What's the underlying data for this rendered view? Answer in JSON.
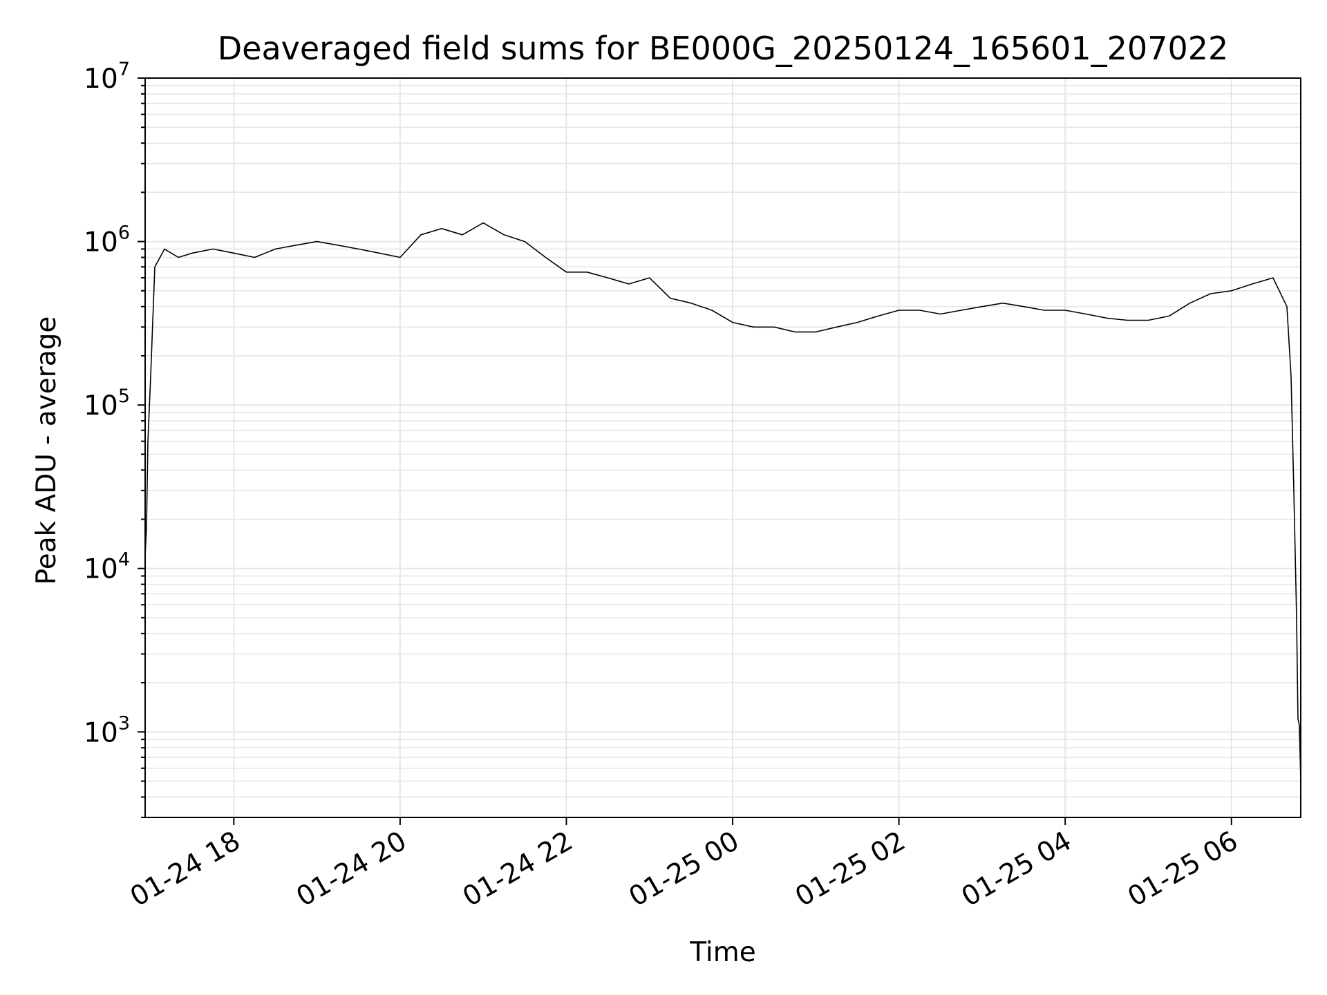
{
  "chart_data": {
    "type": "line",
    "title": "Deaveraged field sums for BE000G_20250124_165601_207022",
    "xlabel": "Time",
    "ylabel": "Peak ADU - average",
    "y_scale": "log",
    "ylim": [
      300,
      10000000
    ],
    "xlim": [
      "2025-01-24 16:56",
      "2025-01-25 06:50"
    ],
    "grid": true,
    "grid_minor": true,
    "line_color": "#000000",
    "grid_color": "#e6e6e6",
    "x_ticks": [
      {
        "t": "2025-01-24 18:00",
        "label": "01-24 18"
      },
      {
        "t": "2025-01-24 20:00",
        "label": "01-24 20"
      },
      {
        "t": "2025-01-24 22:00",
        "label": "01-24 22"
      },
      {
        "t": "2025-01-25 00:00",
        "label": "01-25 00"
      },
      {
        "t": "2025-01-25 02:00",
        "label": "01-25 02"
      },
      {
        "t": "2025-01-25 04:00",
        "label": "01-25 04"
      },
      {
        "t": "2025-01-25 06:00",
        "label": "01-25 06"
      }
    ],
    "y_ticks": [
      {
        "value": 1000,
        "base": "10",
        "exp": "3"
      },
      {
        "value": 10000,
        "base": "10",
        "exp": "4"
      },
      {
        "value": 100000,
        "base": "10",
        "exp": "5"
      },
      {
        "value": 1000000,
        "base": "10",
        "exp": "6"
      },
      {
        "value": 10000000,
        "base": "10",
        "exp": "7"
      }
    ],
    "series": [
      {
        "x": [
          "2025-01-24 16:56",
          "2025-01-24 16:57",
          "2025-01-24 16:58",
          "2025-01-24 17:00",
          "2025-01-24 17:03",
          "2025-01-24 17:10",
          "2025-01-24 17:20",
          "2025-01-24 17:30",
          "2025-01-24 17:45",
          "2025-01-24 18:00",
          "2025-01-24 18:15",
          "2025-01-24 18:30",
          "2025-01-24 18:45",
          "2025-01-24 19:00",
          "2025-01-24 19:15",
          "2025-01-24 19:30",
          "2025-01-24 19:45",
          "2025-01-24 20:00",
          "2025-01-24 20:15",
          "2025-01-24 20:30",
          "2025-01-24 20:45",
          "2025-01-24 21:00",
          "2025-01-24 21:15",
          "2025-01-24 21:30",
          "2025-01-24 21:45",
          "2025-01-24 22:00",
          "2025-01-24 22:15",
          "2025-01-24 22:30",
          "2025-01-24 22:45",
          "2025-01-24 23:00",
          "2025-01-24 23:15",
          "2025-01-24 23:30",
          "2025-01-24 23:45",
          "2025-01-25 00:00",
          "2025-01-25 00:15",
          "2025-01-25 00:30",
          "2025-01-25 00:45",
          "2025-01-25 01:00",
          "2025-01-25 01:15",
          "2025-01-25 01:30",
          "2025-01-25 01:45",
          "2025-01-25 02:00",
          "2025-01-25 02:15",
          "2025-01-25 02:30",
          "2025-01-25 02:45",
          "2025-01-25 03:00",
          "2025-01-25 03:15",
          "2025-01-25 03:30",
          "2025-01-25 03:45",
          "2025-01-25 04:00",
          "2025-01-25 04:15",
          "2025-01-25 04:30",
          "2025-01-25 04:45",
          "2025-01-25 05:00",
          "2025-01-25 05:15",
          "2025-01-25 05:30",
          "2025-01-25 05:45",
          "2025-01-25 06:00",
          "2025-01-25 06:15",
          "2025-01-25 06:30",
          "2025-01-25 06:40",
          "2025-01-25 06:43",
          "2025-01-25 06:45",
          "2025-01-25 06:47",
          "2025-01-25 06:48",
          "2025-01-25 06:49",
          "2025-01-25 06:50"
        ],
        "y": [
          12000,
          18000,
          60000,
          150000,
          700000,
          900000,
          800000,
          850000,
          900000,
          850000,
          800000,
          900000,
          950000,
          1000000,
          950000,
          900000,
          850000,
          800000,
          1100000,
          1200000,
          1100000,
          1300000,
          1100000,
          1000000,
          800000,
          650000,
          650000,
          600000,
          550000,
          600000,
          450000,
          420000,
          380000,
          320000,
          300000,
          300000,
          280000,
          280000,
          300000,
          320000,
          350000,
          380000,
          380000,
          360000,
          380000,
          400000,
          420000,
          400000,
          380000,
          380000,
          360000,
          340000,
          330000,
          330000,
          350000,
          420000,
          480000,
          500000,
          550000,
          600000,
          400000,
          150000,
          30000,
          5000,
          1200,
          1100,
          500
        ]
      }
    ]
  }
}
